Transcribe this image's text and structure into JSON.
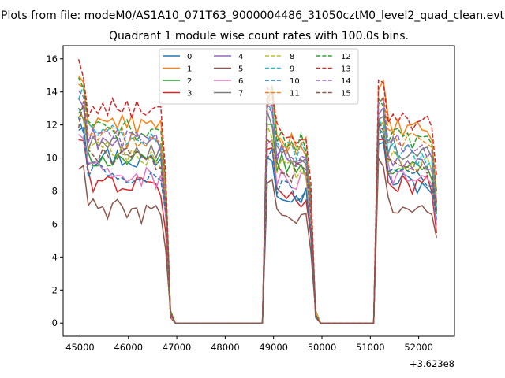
{
  "chart_data": {
    "type": "line",
    "suptitle": "Plots from file: modeM0/AS1A10_071T63_9000004486_31050cztM0_level2_quad_clean.evt",
    "title": "Quadrant 1 module wise count rates with 100.0s bins.",
    "xlabel": "",
    "ylabel": "",
    "x_offset_label": "+3.623e8",
    "xlim": [
      44650,
      52740
    ],
    "ylim": [
      -0.8,
      16.8
    ],
    "x_ticks": [
      45000,
      46000,
      47000,
      48000,
      49000,
      50000,
      51000,
      52000
    ],
    "x_tick_labels": [
      "45000",
      "46000",
      "47000",
      "48000",
      "49000",
      "50000",
      "51000",
      "52000"
    ],
    "y_ticks": [
      0,
      2,
      4,
      6,
      8,
      10,
      12,
      14,
      16
    ],
    "y_tick_labels": [
      "0",
      "2",
      "4",
      "6",
      "8",
      "10",
      "12",
      "14",
      "16"
    ],
    "segments": [
      {
        "start": 44970,
        "end": 46770
      },
      {
        "start": 48870,
        "end": 49770
      },
      {
        "start": 51170,
        "end": 52370
      }
    ],
    "legend_position": "upper center",
    "series": [
      {
        "name": "0",
        "color": "#1f77b4",
        "dash": "solid",
        "levels": [
          10.3,
          8.3,
          8.8
        ]
      },
      {
        "name": "1",
        "color": "#ff7f0e",
        "dash": "solid",
        "levels": [
          12.4,
          11.3,
          12.0
        ]
      },
      {
        "name": "2",
        "color": "#2ca02c",
        "dash": "solid",
        "levels": [
          10.2,
          9.8,
          9.6
        ]
      },
      {
        "name": "3",
        "color": "#d62728",
        "dash": "solid",
        "levels": [
          8.7,
          8.1,
          8.8
        ]
      },
      {
        "name": "4",
        "color": "#9467bd",
        "dash": "solid",
        "levels": [
          11.3,
          10.4,
          10.2
        ]
      },
      {
        "name": "5",
        "color": "#8c564b",
        "dash": "solid",
        "levels": [
          7.1,
          6.8,
          7.4
        ]
      },
      {
        "name": "6",
        "color": "#e377c2",
        "dash": "solid",
        "levels": [
          9.3,
          8.9,
          9.2
        ]
      },
      {
        "name": "7",
        "color": "#7f7f7f",
        "dash": "solid",
        "levels": [
          11.0,
          10.6,
          10.8
        ]
      },
      {
        "name": "8",
        "color": "#bcbd22",
        "dash": "dashed",
        "levels": [
          10.6,
          9.6,
          10.0
        ]
      },
      {
        "name": "9",
        "color": "#17becf",
        "dash": "dashed",
        "levels": [
          11.7,
          10.8,
          10.5
        ]
      },
      {
        "name": "10",
        "color": "#1f77b4",
        "dash": "dashed",
        "levels": [
          9.4,
          8.3,
          9.0
        ]
      },
      {
        "name": "11",
        "color": "#ff7f0e",
        "dash": "dashed",
        "levels": [
          11.5,
          11.2,
          11.3
        ]
      },
      {
        "name": "12",
        "color": "#2ca02c",
        "dash": "dashed",
        "levels": [
          12.0,
          11.4,
          11.5
        ]
      },
      {
        "name": "13",
        "color": "#d62728",
        "dash": "dashed",
        "levels": [
          13.2,
          11.9,
          12.5
        ]
      },
      {
        "name": "14",
        "color": "#9467bd",
        "dash": "dashed",
        "levels": [
          11.4,
          10.5,
          11.0
        ]
      },
      {
        "name": "15",
        "color": "#8c564b",
        "dash": "dashed",
        "levels": [
          10.4,
          9.5,
          9.8
        ]
      }
    ]
  }
}
